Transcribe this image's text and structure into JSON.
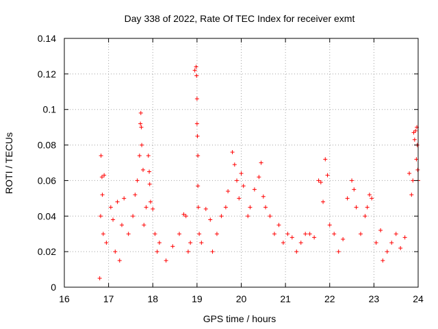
{
  "chart_data": {
    "type": "scatter",
    "title": "Day 338 of 2022, Rate Of TEC Index for receiver exmt",
    "xlabel": "GPS time / hours",
    "ylabel": "ROTI / TECUs",
    "xlim": [
      16,
      24
    ],
    "ylim": [
      0,
      0.14
    ],
    "xticks": [
      "16",
      "17",
      "18",
      "19",
      "20",
      "21",
      "22",
      "23",
      "24"
    ],
    "yticks": [
      "0",
      "0.02",
      "0.04",
      "0.06",
      "0.08",
      "0.1",
      "0.12",
      "0.14"
    ],
    "grid": true,
    "marker": "+",
    "marker_color": "#ff0000",
    "series": [
      {
        "name": "ROTI",
        "color": "#ff0000",
        "x": [
          16.8,
          16.82,
          16.83,
          16.85,
          16.86,
          16.88,
          16.9,
          16.95,
          17.05,
          17.1,
          17.15,
          17.2,
          17.25,
          17.3,
          17.35,
          17.45,
          17.55,
          17.6,
          17.65,
          17.7,
          17.72,
          17.73,
          17.74,
          17.75,
          17.78,
          17.8,
          17.85,
          17.9,
          17.92,
          17.93,
          17.95,
          18.0,
          18.05,
          18.1,
          18.15,
          18.3,
          18.45,
          18.6,
          18.7,
          18.75,
          18.8,
          18.85,
          18.95,
          18.98,
          18.99,
          19.0,
          19.0,
          19.01,
          19.02,
          19.02,
          19.03,
          19.05,
          19.1,
          19.2,
          19.3,
          19.35,
          19.45,
          19.55,
          19.65,
          19.7,
          19.8,
          19.85,
          19.9,
          19.95,
          20.0,
          20.05,
          20.15,
          20.2,
          20.3,
          20.4,
          20.45,
          20.5,
          20.55,
          20.65,
          20.75,
          20.85,
          20.95,
          21.05,
          21.15,
          21.25,
          21.35,
          21.45,
          21.55,
          21.65,
          21.75,
          21.8,
          21.85,
          21.9,
          21.95,
          22.0,
          22.1,
          22.2,
          22.3,
          22.4,
          22.5,
          22.55,
          22.6,
          22.7,
          22.8,
          22.85,
          22.9,
          22.95,
          23.05,
          23.15,
          23.2,
          23.3,
          23.4,
          23.5,
          23.6,
          23.7,
          23.8,
          23.85,
          23.88,
          23.9,
          23.92,
          23.94,
          23.96,
          23.97,
          23.98,
          23.99,
          24.0
        ],
        "y": [
          0.005,
          0.04,
          0.074,
          0.062,
          0.052,
          0.03,
          0.063,
          0.025,
          0.045,
          0.038,
          0.02,
          0.048,
          0.015,
          0.035,
          0.05,
          0.03,
          0.04,
          0.052,
          0.06,
          0.074,
          0.092,
          0.098,
          0.09,
          0.08,
          0.066,
          0.035,
          0.045,
          0.074,
          0.065,
          0.058,
          0.048,
          0.044,
          0.03,
          0.02,
          0.025,
          0.015,
          0.023,
          0.03,
          0.041,
          0.04,
          0.02,
          0.025,
          0.122,
          0.124,
          0.119,
          0.106,
          0.092,
          0.085,
          0.074,
          0.057,
          0.045,
          0.03,
          0.025,
          0.044,
          0.038,
          0.02,
          0.03,
          0.04,
          0.045,
          0.054,
          0.076,
          0.069,
          0.06,
          0.05,
          0.064,
          0.057,
          0.04,
          0.045,
          0.055,
          0.062,
          0.07,
          0.051,
          0.045,
          0.04,
          0.03,
          0.035,
          0.025,
          0.03,
          0.028,
          0.02,
          0.025,
          0.03,
          0.03,
          0.028,
          0.06,
          0.059,
          0.048,
          0.072,
          0.063,
          0.035,
          0.03,
          0.02,
          0.027,
          0.05,
          0.06,
          0.055,
          0.045,
          0.03,
          0.04,
          0.045,
          0.052,
          0.05,
          0.025,
          0.032,
          0.015,
          0.02,
          0.025,
          0.03,
          0.022,
          0.028,
          0.064,
          0.052,
          0.06,
          0.087,
          0.083,
          0.088,
          0.072,
          0.09,
          0.08,
          0.066,
          0.06
        ]
      }
    ]
  }
}
